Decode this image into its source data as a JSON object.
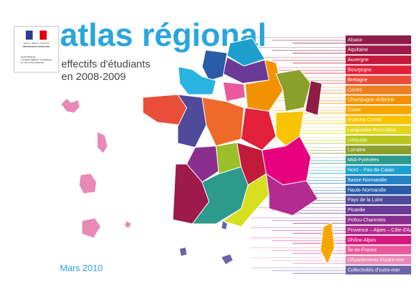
{
  "header": {
    "title": "atlas régional",
    "subtitle_line1": "effectifs d'étudiants",
    "subtitle_line2": "en 2008-2009",
    "date": "Mars 2010"
  },
  "logo": {
    "motto": "Liberté • Égalité • Fraternité",
    "republic": "RÉPUBLIQUE FRANÇAISE",
    "ministry": "MINISTÈRE DE L'ENSEIGNEMENT SUPÉRIEUR ET DE LA RECHERCHE"
  },
  "legend": [
    {
      "label": "Alsace",
      "color": "#8e1c47"
    },
    {
      "label": "Aquitaine",
      "color": "#9e1a4a"
    },
    {
      "label": "Auvergne",
      "color": "#c21a3b"
    },
    {
      "label": "Bourgogne",
      "color": "#e2203a"
    },
    {
      "label": "Bretagne",
      "color": "#e94e3b"
    },
    {
      "label": "Centre",
      "color": "#ef7d22"
    },
    {
      "label": "Champagne-Ardenne",
      "color": "#f39200"
    },
    {
      "label": "Corse",
      "color": "#f7a600"
    },
    {
      "label": "Franche-Comté",
      "color": "#f8c300"
    },
    {
      "label": "Languedoc-Roussillon",
      "color": "#e2d51c"
    },
    {
      "label": "Limousin",
      "color": "#b8c71f"
    },
    {
      "label": "Lorraine",
      "color": "#8aa02a"
    },
    {
      "label": "Midi-Pyrénées",
      "color": "#2e9a8e"
    },
    {
      "label": "Nord – Pas-de-Calais",
      "color": "#1d9fcc"
    },
    {
      "label": "Basse-Normandie",
      "color": "#2381c4"
    },
    {
      "label": "Haute-Normandie",
      "color": "#2b5ca8"
    },
    {
      "label": "Pays de la Loire",
      "color": "#4f4a9a"
    },
    {
      "label": "Picardie",
      "color": "#6a3a96"
    },
    {
      "label": "Poitou-Charentes",
      "color": "#8b2f8f"
    },
    {
      "label": "Provence – Alpes – Côte d'Azur",
      "color": "#b32b8f"
    },
    {
      "label": "Rhône-Alpes",
      "color": "#d6197f"
    },
    {
      "label": "Île-de-France",
      "color": "#e85a9c"
    },
    {
      "label": "Départements d'outre-mer",
      "color": "#e889b6"
    },
    {
      "label": "Collectivités d'outre-mer",
      "color": "#6b64a8"
    }
  ]
}
